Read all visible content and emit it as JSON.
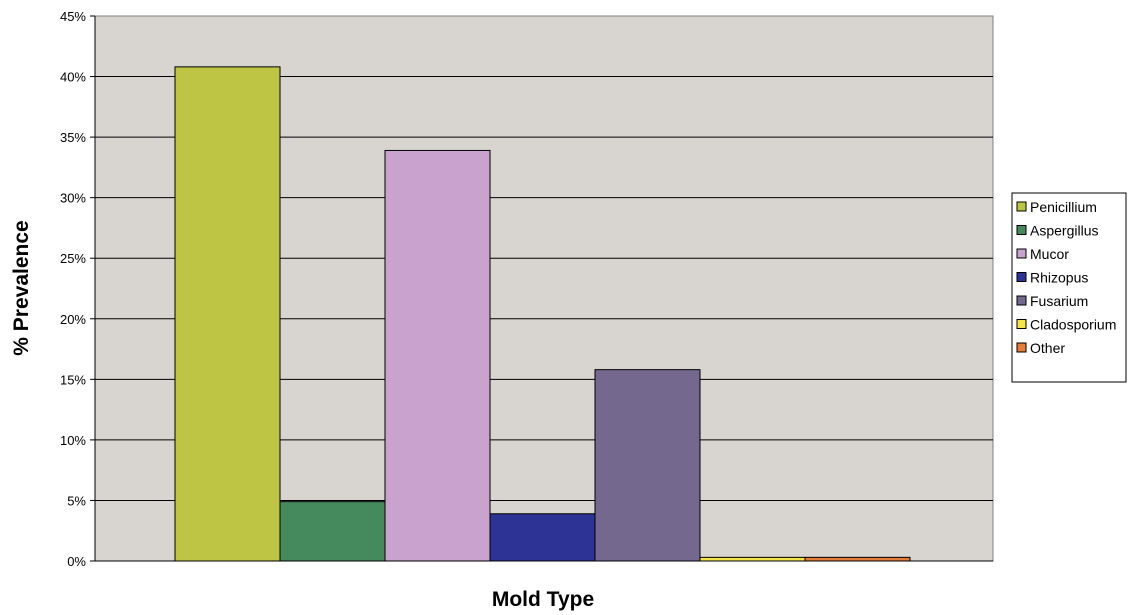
{
  "chart_data": {
    "type": "bar",
    "xlabel": "Mold Type",
    "ylabel": "% Prevalence",
    "ylim": [
      0,
      45
    ],
    "y_ticks": [
      "0%",
      "5%",
      "10%",
      "15%",
      "20%",
      "25%",
      "30%",
      "35%",
      "40%",
      "45%"
    ],
    "y_tick_values": [
      0,
      5,
      10,
      15,
      20,
      25,
      30,
      35,
      40,
      45
    ],
    "grid": true,
    "legend_position": "right",
    "plot_background": "#D8D4CF",
    "series": [
      {
        "name": "Penicillium",
        "value": 40.8,
        "color": "#BEC545"
      },
      {
        "name": "Aspergillus",
        "value": 4.9,
        "color": "#448A5C"
      },
      {
        "name": "Mucor",
        "value": 33.9,
        "color": "#C9A2CE"
      },
      {
        "name": "Rhizopus",
        "value": 3.9,
        "color": "#2D3395"
      },
      {
        "name": "Fusarium",
        "value": 15.8,
        "color": "#74688F"
      },
      {
        "name": "Cladosporium",
        "value": 0.3,
        "color": "#F5E34A"
      },
      {
        "name": "Other",
        "value": 0.3,
        "color": "#E57E3A"
      }
    ]
  }
}
